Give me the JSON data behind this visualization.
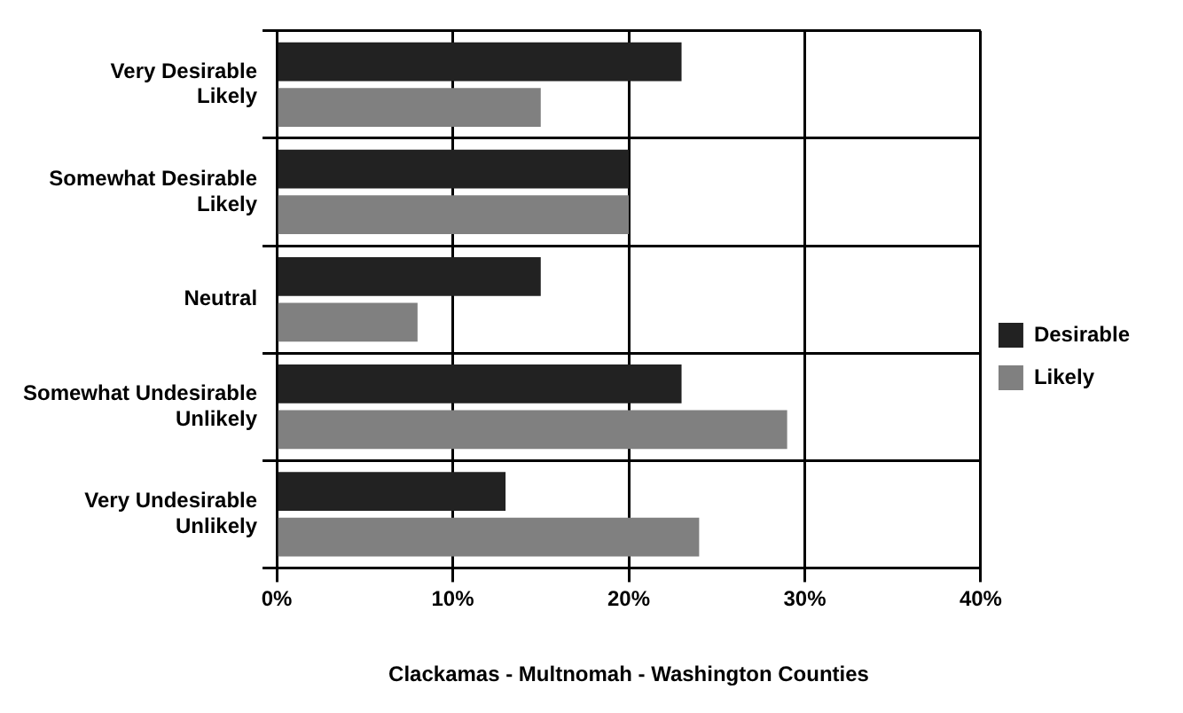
{
  "chart_data": {
    "type": "bar",
    "orientation": "horizontal",
    "categories": [
      "Very Desirable\nLikely",
      "Somewhat Desirable\nLikely",
      "Neutral",
      "Somewhat Undesirable\nUnlikely",
      "Very Undesirable\nUnlikely"
    ],
    "series": [
      {
        "name": "Desirable",
        "color": "#222222",
        "values": [
          23,
          20,
          15,
          23,
          13
        ]
      },
      {
        "name": "Likely",
        "color": "#808080",
        "values": [
          15,
          20,
          8,
          29,
          24
        ]
      }
    ],
    "xlim": [
      0,
      40
    ],
    "xticks": [
      {
        "value": 0,
        "label": "0%"
      },
      {
        "value": 10,
        "label": "10%"
      },
      {
        "value": 20,
        "label": "20%"
      },
      {
        "value": 30,
        "label": "30%"
      },
      {
        "value": 40,
        "label": "40%"
      }
    ],
    "xlabel": "Clackamas - Multnomah - Washington Counties",
    "grid": true,
    "legend": "right"
  }
}
